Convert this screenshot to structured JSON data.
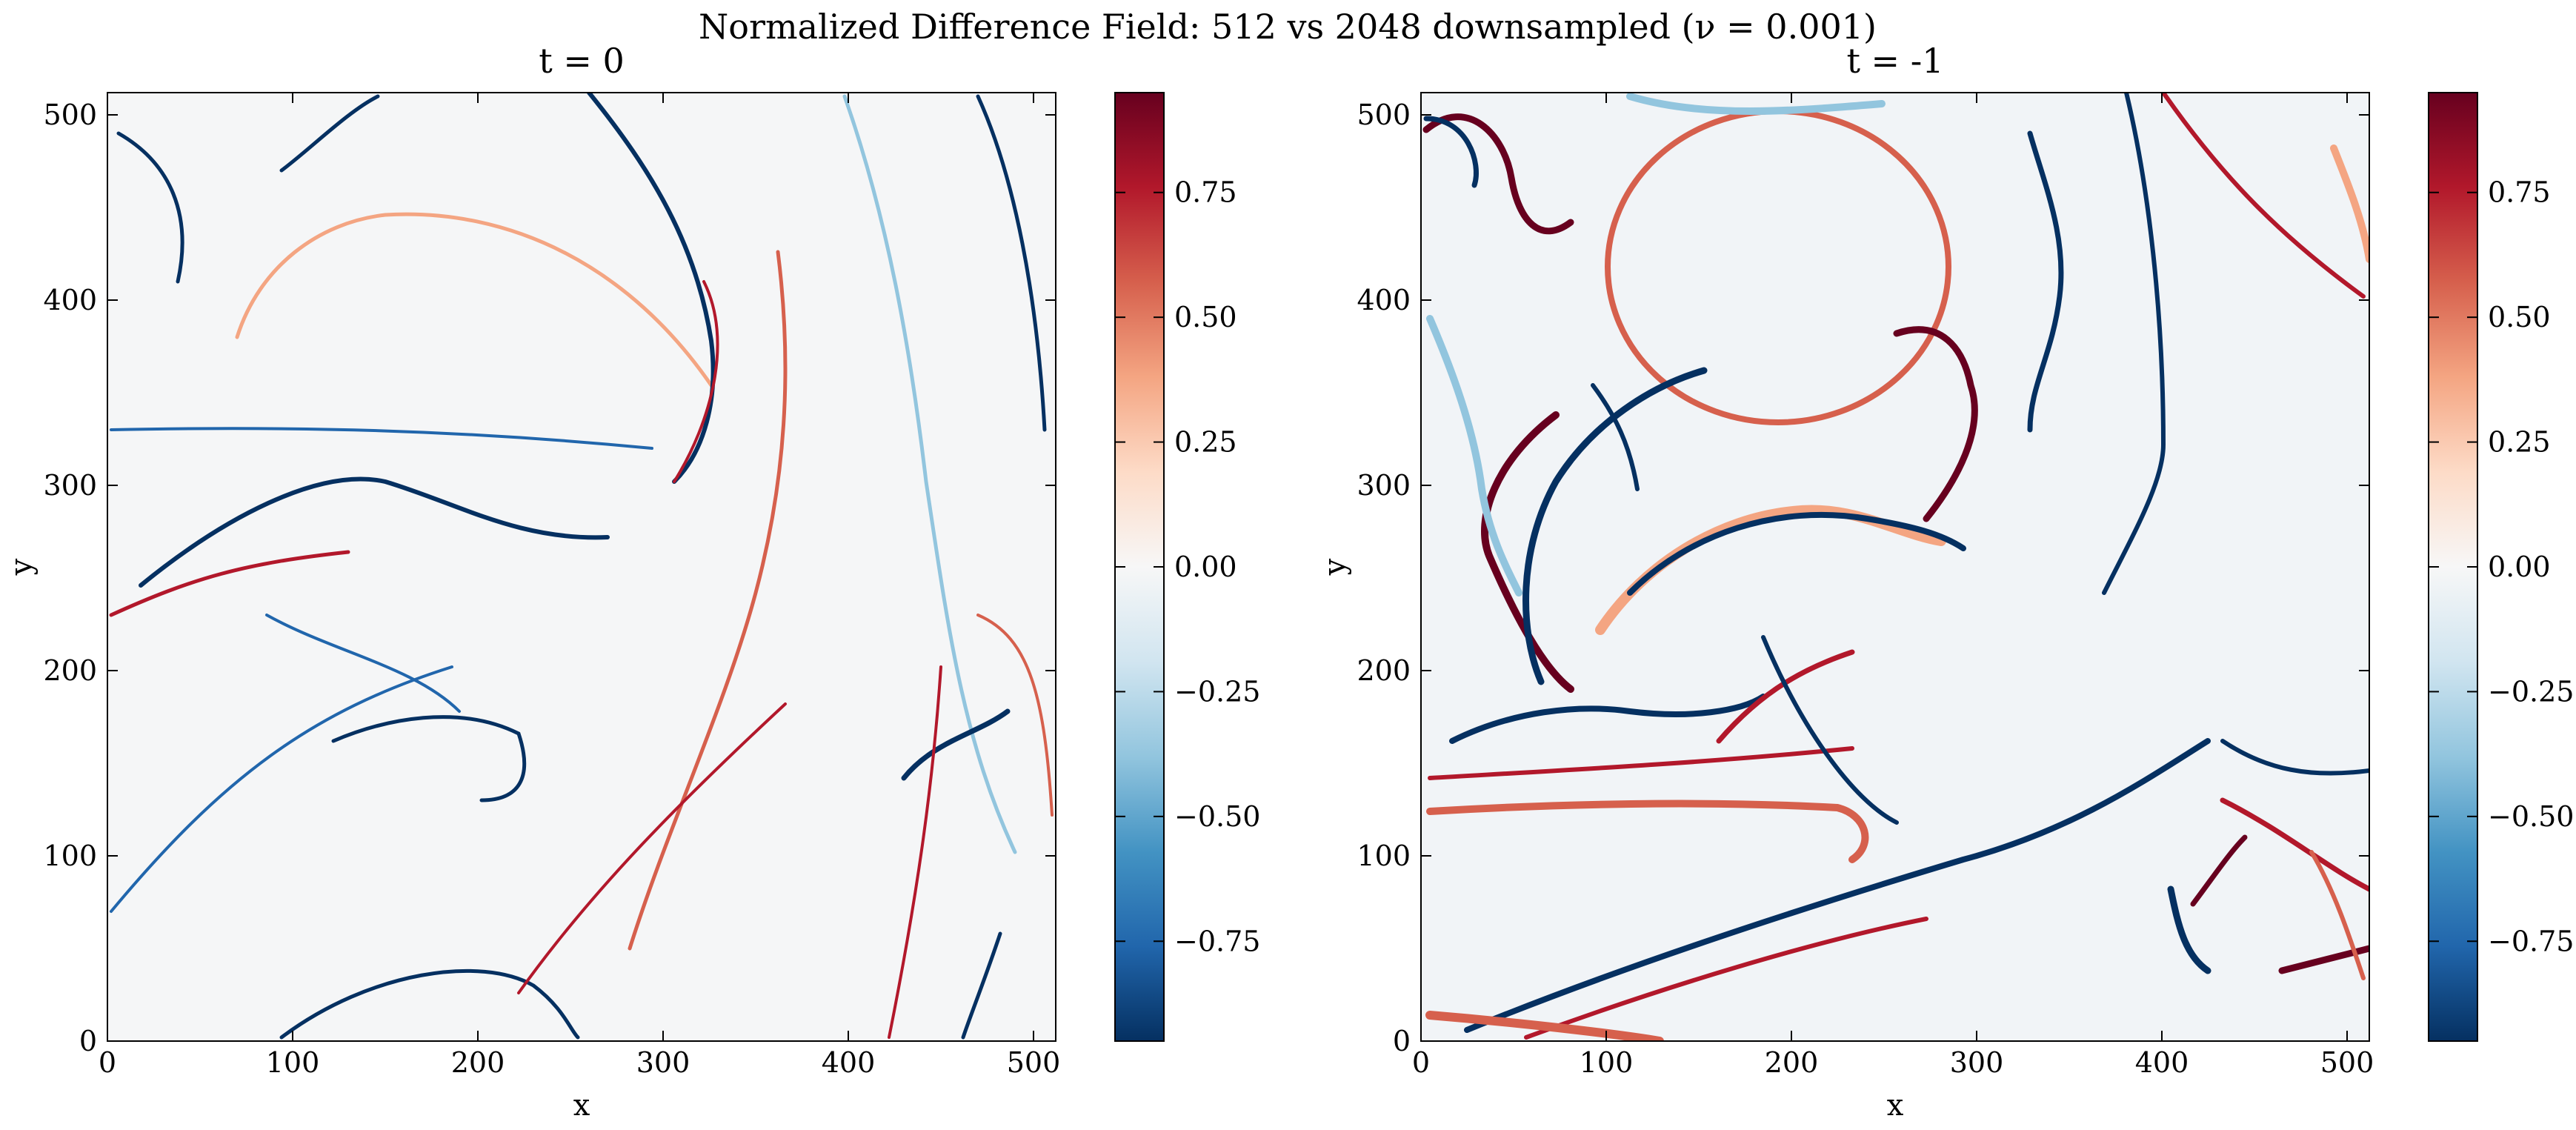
{
  "figure": {
    "suptitle": "Normalized Difference Field: 512 vs 2048 downsampled (ν = 0.001)"
  },
  "chart_data": [
    {
      "type": "heatmap",
      "title": "t = 0",
      "xlabel": "x",
      "ylabel": "y",
      "xlim": [
        0,
        512
      ],
      "ylim": [
        0,
        512
      ],
      "xticks": [
        0,
        100,
        200,
        300,
        400,
        500
      ],
      "yticks": [
        0,
        100,
        200,
        300,
        400,
        500
      ],
      "colormap": "RdBu_r",
      "clim": [
        -0.95,
        0.95
      ],
      "colorbar_ticks": [
        0.75,
        0.5,
        0.25,
        0.0,
        -0.25,
        -0.5,
        -0.75
      ],
      "colorbar_tick_labels": [
        "0.75",
        "0.50",
        "0.25",
        "0.00",
        "−0.25",
        "−0.50",
        "−0.75"
      ],
      "description": "Mostly near-zero field with thin filament structures"
    },
    {
      "type": "heatmap",
      "title": "t = -1",
      "xlabel": "x",
      "ylabel": "y",
      "xlim": [
        0,
        512
      ],
      "ylim": [
        0,
        512
      ],
      "xticks": [
        0,
        100,
        200,
        300,
        400,
        500
      ],
      "yticks": [
        0,
        100,
        200,
        300,
        400,
        500
      ],
      "colormap": "RdBu_r",
      "clim": [
        -0.95,
        0.95
      ],
      "colorbar_ticks": [
        0.75,
        0.5,
        0.25,
        0.0,
        -0.25,
        -0.5,
        -0.75
      ],
      "colorbar_tick_labels": [
        "0.75",
        "0.50",
        "0.25",
        "0.00",
        "−0.25",
        "−0.50",
        "−0.75"
      ],
      "description": "Stronger, wider filament structures"
    }
  ],
  "colors": {
    "cmap_stops": [
      "#053061",
      "#2166ac",
      "#4393c3",
      "#92c5de",
      "#d1e5f0",
      "#f7f7f7",
      "#fddbc7",
      "#f4a582",
      "#d6604d",
      "#b2182b",
      "#67001f"
    ],
    "filament_red": "#b2182b",
    "filament_dark_red": "#67001f",
    "filament_blue": "#2166ac",
    "filament_dark_blue": "#053061",
    "background_field": "#f5f6f7"
  }
}
